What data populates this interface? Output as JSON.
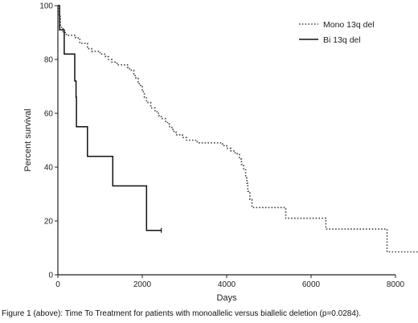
{
  "chart_data": {
    "type": "line",
    "subtype": "kaplan-meier-step",
    "xlabel": "Days",
    "ylabel": "Percent survival",
    "xlim": [
      0,
      8000
    ],
    "ylim": [
      0,
      100
    ],
    "x_ticks": [
      0,
      2000,
      4000,
      6000,
      8000
    ],
    "y_ticks": [
      0,
      20,
      40,
      60,
      80,
      100
    ],
    "grid": false,
    "legend_position": "top-right",
    "series": [
      {
        "name": "Mono 13q del",
        "line_style": "dotted",
        "steps": [
          [
            0,
            100
          ],
          [
            20,
            96
          ],
          [
            60,
            92
          ],
          [
            120,
            90
          ],
          [
            200,
            89
          ],
          [
            420,
            88
          ],
          [
            520,
            86
          ],
          [
            700,
            84
          ],
          [
            800,
            83
          ],
          [
            1000,
            82
          ],
          [
            1130,
            81
          ],
          [
            1200,
            80
          ],
          [
            1280,
            79
          ],
          [
            1400,
            78
          ],
          [
            1650,
            77
          ],
          [
            1700,
            76
          ],
          [
            1800,
            74
          ],
          [
            1850,
            73
          ],
          [
            1900,
            71
          ],
          [
            1960,
            70
          ],
          [
            2000,
            68
          ],
          [
            2050,
            66
          ],
          [
            2100,
            64
          ],
          [
            2200,
            62
          ],
          [
            2300,
            61
          ],
          [
            2350,
            60
          ],
          [
            2400,
            59
          ],
          [
            2450,
            58
          ],
          [
            2550,
            57
          ],
          [
            2600,
            56
          ],
          [
            2650,
            55
          ],
          [
            2700,
            54
          ],
          [
            2750,
            53
          ],
          [
            2800,
            52
          ],
          [
            2950,
            51
          ],
          [
            3050,
            50
          ],
          [
            3300,
            49
          ],
          [
            3900,
            48
          ],
          [
            4000,
            47
          ],
          [
            4100,
            46
          ],
          [
            4200,
            45
          ],
          [
            4300,
            43
          ],
          [
            4350,
            41
          ],
          [
            4400,
            39
          ],
          [
            4450,
            36
          ],
          [
            4480,
            34
          ],
          [
            4500,
            31
          ],
          [
            4550,
            28
          ],
          [
            4600,
            25
          ],
          [
            5400,
            21
          ],
          [
            6350,
            17
          ],
          [
            7800,
            8.5
          ],
          [
            8580,
            8.5
          ]
        ]
      },
      {
        "name": "Bi 13q del",
        "line_style": "solid",
        "steps": [
          [
            0,
            100
          ],
          [
            40,
            91
          ],
          [
            150,
            82
          ],
          [
            400,
            72
          ],
          [
            430,
            66
          ],
          [
            440,
            55
          ],
          [
            700,
            44
          ],
          [
            1300,
            33
          ],
          [
            2100,
            16.5
          ],
          [
            2450,
            16.5
          ]
        ]
      }
    ]
  },
  "caption": "Figure 1 (above): Time To Treatment for patients with monoallelic versus biallelic deletion (p=0.0284)."
}
